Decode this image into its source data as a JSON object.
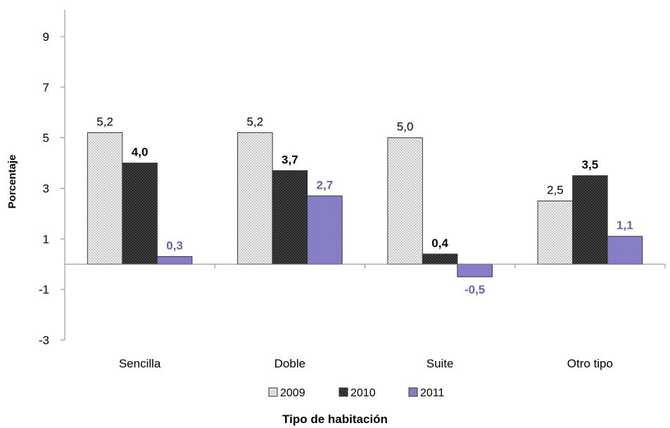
{
  "chart_data": {
    "type": "bar",
    "categories": [
      "Sencilla",
      "Doble",
      "Suite",
      "Otro tipo"
    ],
    "series": [
      {
        "name": "2009",
        "values": [
          5.2,
          5.2,
          5.0,
          2.5
        ],
        "labels": [
          "5,2",
          "5,2",
          "5,0",
          "2,5"
        ],
        "color": "#d9d9d9",
        "label_color": "#000000",
        "label_bold": false
      },
      {
        "name": "2010",
        "values": [
          4.0,
          3.7,
          0.4,
          3.5
        ],
        "labels": [
          "4,0",
          "3,7",
          "0,4",
          "3,5"
        ],
        "color": "#3a3a3a",
        "label_color": "#000000",
        "label_bold": true
      },
      {
        "name": "2011",
        "values": [
          0.3,
          2.7,
          -0.5,
          1.1
        ],
        "labels": [
          "0,3",
          "2,7",
          "-0,5",
          "1,1"
        ],
        "color": "#8a80c8",
        "label_color": "#6b63a8",
        "label_bold": true
      }
    ],
    "yticks": [
      -3,
      -1,
      1,
      3,
      5,
      7,
      9
    ],
    "ytick_labels": [
      "-3",
      "-1",
      "1",
      "3",
      "5",
      "7",
      "9"
    ],
    "ylim": [
      -3,
      10
    ],
    "ylabel": "Porcentaje",
    "xlabel": "Tipo de habitación",
    "legend_position": "bottom",
    "grid": false
  }
}
